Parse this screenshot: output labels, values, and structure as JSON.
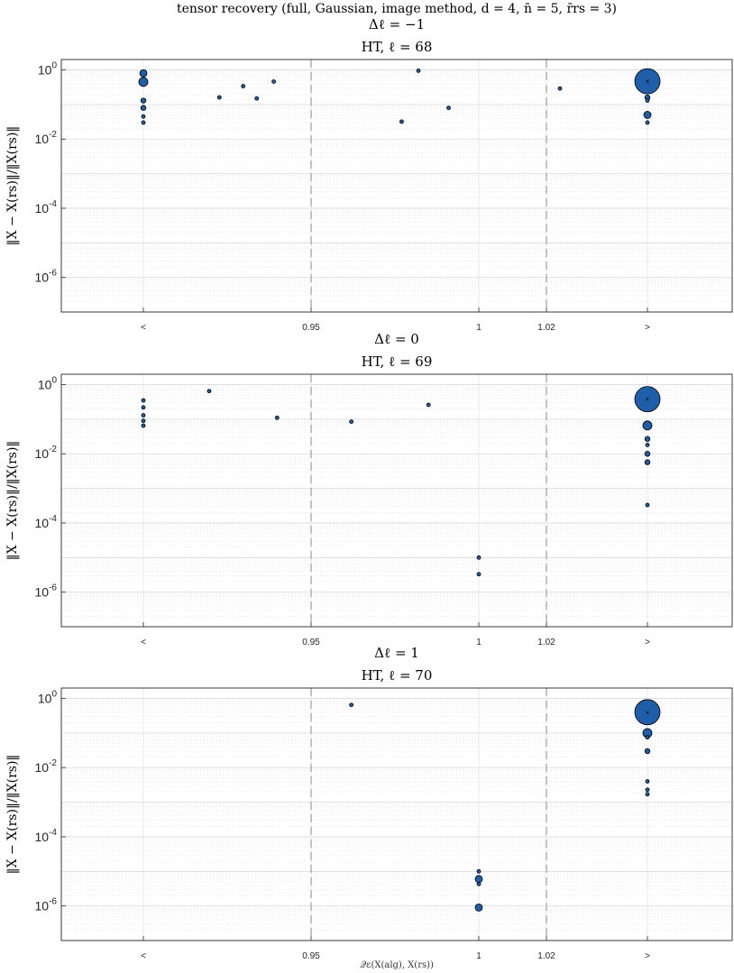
{
  "figure": {
    "title": "tensor recovery (full, Gaussian, image method, d = 4, n̄ = 5, r̄rs = 3)",
    "xlabel": "𝒬ε(X(alg), X(rs))"
  },
  "colors": {
    "marker_fill": "#1f5ea8",
    "marker_edge": "#000000",
    "grid_major": "#d9d9d9",
    "dashed_line": "#8a8a8a"
  },
  "chart_data": [
    {
      "type": "scatter",
      "title_line1": "Δℓ = −1",
      "title_line2": "HT, ℓ = 68",
      "ylabel": "‖X − X(rs)‖/‖X(rs)‖",
      "yscale": "log",
      "ylim": [
        1e-07,
        2
      ],
      "y_ticks": [
        "10^0",
        "10^-2",
        "10^-4",
        "10^-6"
      ],
      "x_ticks": [
        "<",
        "0.95",
        "1",
        "1.02",
        ">"
      ],
      "dashed_vlines": [
        "0.95",
        "1.02"
      ],
      "points": [
        {
          "x": "<",
          "y": 0.8,
          "size": 4
        },
        {
          "x": "<",
          "y": 0.45,
          "size": 6
        },
        {
          "x": "<",
          "y": 0.13,
          "size": 3
        },
        {
          "x": "<",
          "y": 0.08,
          "size": 3
        },
        {
          "x": "<",
          "y": 0.045,
          "size": 2
        },
        {
          "x": "<",
          "y": 0.03,
          "size": 2
        },
        {
          "x": 0.923,
          "y": 0.16,
          "size": 2
        },
        {
          "x": 0.93,
          "y": 0.34,
          "size": 2
        },
        {
          "x": 0.934,
          "y": 0.15,
          "size": 2
        },
        {
          "x": 0.939,
          "y": 0.46,
          "size": 2
        },
        {
          "x": 0.977,
          "y": 0.032,
          "size": 2
        },
        {
          "x": 0.982,
          "y": 0.95,
          "size": 2
        },
        {
          "x": 0.991,
          "y": 0.08,
          "size": 2
        },
        {
          "x": 1.024,
          "y": 0.29,
          "size": 2
        },
        {
          "x": ">",
          "y": 0.47,
          "size": 14,
          "median": true
        },
        {
          "x": ">",
          "y": 0.16,
          "size": 3
        },
        {
          "x": ">",
          "y": 0.13,
          "size": 2
        },
        {
          "x": ">",
          "y": 0.05,
          "size": 4
        },
        {
          "x": ">",
          "y": 0.03,
          "size": 2
        }
      ]
    },
    {
      "type": "scatter",
      "title_line1": "Δℓ = 0",
      "title_line2": "HT, ℓ = 69",
      "ylabel": "‖X − X(rs)‖/‖X(rs)‖",
      "yscale": "log",
      "ylim": [
        1e-07,
        2
      ],
      "y_ticks": [
        "10^0",
        "10^-2",
        "10^-4",
        "10^-6"
      ],
      "x_ticks": [
        "<",
        "0.95",
        "1",
        "1.02",
        ">"
      ],
      "dashed_vlines": [
        "0.95",
        "1.02"
      ],
      "points": [
        {
          "x": "<",
          "y": 0.35,
          "size": 2
        },
        {
          "x": "<",
          "y": 0.22,
          "size": 2
        },
        {
          "x": "<",
          "y": 0.13,
          "size": 2
        },
        {
          "x": "<",
          "y": 0.09,
          "size": 2
        },
        {
          "x": "<",
          "y": 0.065,
          "size": 2
        },
        {
          "x": 0.92,
          "y": 0.65,
          "size": 2
        },
        {
          "x": 0.94,
          "y": 0.11,
          "size": 2
        },
        {
          "x": 0.962,
          "y": 0.085,
          "size": 2
        },
        {
          "x": 0.985,
          "y": 0.26,
          "size": 2
        },
        {
          "x": 1.0,
          "y": 1e-05,
          "size": 2
        },
        {
          "x": 1.0,
          "y": 3.3e-06,
          "size": 2
        },
        {
          "x": ">",
          "y": 0.38,
          "size": 14,
          "median": true
        },
        {
          "x": ">",
          "y": 0.066,
          "size": 5
        },
        {
          "x": ">",
          "y": 0.027,
          "size": 3
        },
        {
          "x": ">",
          "y": 0.018,
          "size": 2
        },
        {
          "x": ">",
          "y": 0.01,
          "size": 3
        },
        {
          "x": ">",
          "y": 0.0057,
          "size": 3
        },
        {
          "x": ">",
          "y": 0.00033,
          "size": 2
        }
      ]
    },
    {
      "type": "scatter",
      "title_line1": "Δℓ = 1",
      "title_line2": "HT, ℓ = 70",
      "ylabel": "‖X − X(rs)‖/‖X(rs)‖",
      "yscale": "log",
      "ylim": [
        1e-07,
        2
      ],
      "y_ticks": [
        "10^0",
        "10^-2",
        "10^-4",
        "10^-6"
      ],
      "x_ticks": [
        "<",
        "0.95",
        "1",
        "1.02",
        ">"
      ],
      "dashed_vlines": [
        "0.95",
        "1.02"
      ],
      "points": [
        {
          "x": 0.962,
          "y": 0.65,
          "size": 2
        },
        {
          "x": 1.0,
          "y": 1e-05,
          "size": 2
        },
        {
          "x": 1.0,
          "y": 6e-06,
          "size": 4
        },
        {
          "x": 1.0,
          "y": 4.3e-06,
          "size": 2
        },
        {
          "x": 1.0,
          "y": 9e-07,
          "size": 4
        },
        {
          "x": ">",
          "y": 0.4,
          "size": 14,
          "median": true
        },
        {
          "x": ">",
          "y": 0.1,
          "size": 5
        },
        {
          "x": ">",
          "y": 0.075,
          "size": 2
        },
        {
          "x": ">",
          "y": 0.03,
          "size": 3
        },
        {
          "x": ">",
          "y": 0.004,
          "size": 2
        },
        {
          "x": ">",
          "y": 0.0023,
          "size": 2
        },
        {
          "x": ">",
          "y": 0.0017,
          "size": 2
        }
      ]
    }
  ]
}
